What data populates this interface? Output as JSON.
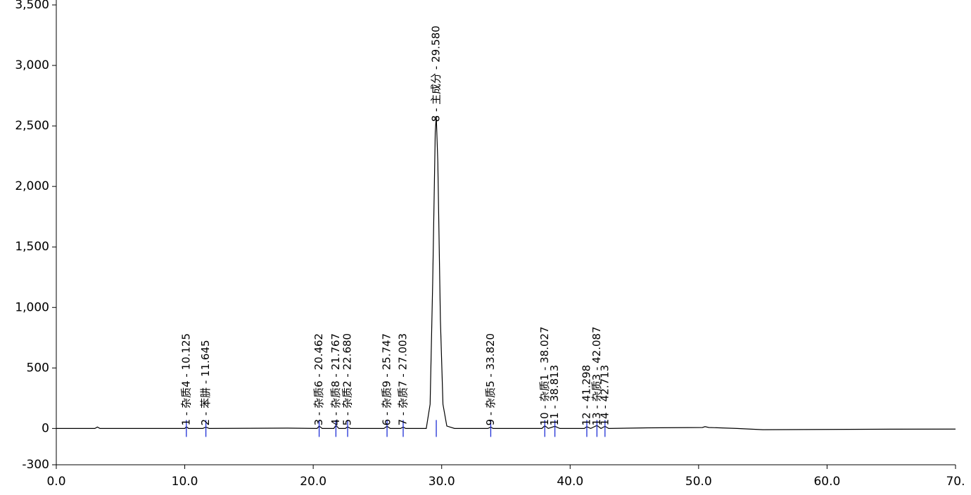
{
  "chart_data": {
    "type": "line",
    "color": "#000000",
    "xlim": [
      0,
      70
    ],
    "ylim": [
      -300,
      3500
    ],
    "xticks": [
      {
        "value": 0,
        "label": "0.0"
      },
      {
        "value": 10,
        "label": "10.0"
      },
      {
        "value": 20,
        "label": "20.0"
      },
      {
        "value": 30,
        "label": "30.0"
      },
      {
        "value": 40,
        "label": "40.0"
      },
      {
        "value": 50,
        "label": "50.0"
      },
      {
        "value": 60,
        "label": "60.0"
      },
      {
        "value": 70,
        "label": "70."
      }
    ],
    "yticks": [
      -300,
      0,
      500,
      {
        "value": 1000,
        "label": "1,000"
      },
      {
        "value": 1500,
        "label": "1,500"
      },
      {
        "value": 2000,
        "label": "2,000"
      },
      {
        "value": 2500,
        "label": "2,500"
      },
      {
        "value": 3000,
        "label": "3,000"
      },
      {
        "value": 3500,
        "label": "3,500"
      }
    ],
    "x": [
      0,
      3,
      3.2,
      3.4,
      10,
      10.125,
      10.3,
      11.4,
      11.645,
      11.9,
      18,
      20.3,
      20.462,
      20.7,
      21.6,
      21.767,
      22.0,
      22.5,
      22.68,
      22.9,
      25.5,
      25.747,
      26.0,
      26.8,
      27.003,
      27.2,
      28.8,
      29.1,
      29.3,
      29.5,
      29.58,
      29.7,
      29.9,
      30.1,
      30.4,
      31,
      33.6,
      33.82,
      34.0,
      37.8,
      38.027,
      38.3,
      38.813,
      39.2,
      41.1,
      41.298,
      41.6,
      42.087,
      42.4,
      42.713,
      43.0,
      46,
      50.3,
      50.5,
      50.8,
      53,
      55,
      60,
      65,
      70
    ],
    "values": [
      0,
      0,
      12,
      0,
      0,
      14,
      0,
      0,
      12,
      0,
      3,
      0,
      20,
      0,
      0,
      25,
      0,
      0,
      14,
      0,
      0,
      18,
      0,
      0,
      12,
      0,
      0,
      200,
      1200,
      2450,
      2580,
      2200,
      900,
      200,
      20,
      0,
      0,
      12,
      0,
      0,
      22,
      0,
      18,
      0,
      0,
      15,
      0,
      25,
      0,
      18,
      0,
      5,
      8,
      15,
      8,
      0,
      -10,
      -8,
      -6,
      -5
    ],
    "peaks": [
      {
        "x": 10.125,
        "label": "1 - 杂质4 - 10.125"
      },
      {
        "x": 11.645,
        "label": "2 - 苯肼 - 11.645"
      },
      {
        "x": 20.462,
        "label": "3 - 杂质6 - 20.462"
      },
      {
        "x": 21.767,
        "label": "4 - 杂质8 - 21.767"
      },
      {
        "x": 22.68,
        "label": "5 - 杂质2 - 22.680"
      },
      {
        "x": 25.747,
        "label": "6 - 杂质9 - 25.747"
      },
      {
        "x": 27.003,
        "label": "7 - 杂质7 - 27.003"
      },
      {
        "x": 29.58,
        "label": "8 - 主成分 - 29.580"
      },
      {
        "x": 33.82,
        "label": "9 - 杂质5 - 33.820"
      },
      {
        "x": 38.027,
        "label": "10 - 杂质1 - 38.027"
      },
      {
        "x": 38.813,
        "label": "11 - 38.813"
      },
      {
        "x": 41.298,
        "label": "12 - 41.298"
      },
      {
        "x": 42.087,
        "label": "13 - 杂质3 - 42.087"
      },
      {
        "x": 42.713,
        "label": "14 - 42.713"
      }
    ]
  }
}
